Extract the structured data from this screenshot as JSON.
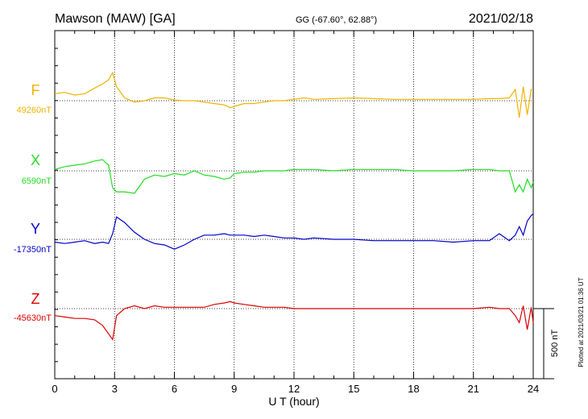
{
  "header": {
    "station": "Mawson (MAW)  [GA]",
    "coords": "GG (-67.60°,  62.88°)",
    "date": "2021/02/18"
  },
  "footer": {
    "xlabel": "U T (hour)",
    "plotted": "Plotted at 2021/03/21 01:36 UT",
    "scale": "500 nT"
  },
  "colors": {
    "F": "#f0b400",
    "X": "#22dd22",
    "Y": "#0000cc",
    "Z": "#dd0000"
  },
  "chart_data": {
    "type": "line",
    "xlim": [
      0,
      24
    ],
    "x_ticks": [
      "0",
      "3",
      "6",
      "9",
      "12",
      "15",
      "18",
      "21",
      "24"
    ],
    "x_grid_step": 3,
    "scale_bar_nT": 500,
    "x": [
      0,
      0.5,
      1,
      1.5,
      2,
      2.4,
      2.7,
      2.9,
      3.1,
      3.5,
      4,
      4.5,
      5,
      5.5,
      6,
      6.5,
      7,
      7.5,
      8,
      8.5,
      8.8,
      9,
      9.5,
      10,
      10.5,
      11,
      11.5,
      12,
      12.5,
      13,
      14,
      15,
      16,
      17,
      18,
      19,
      20,
      21,
      21.8,
      22.3,
      22.8,
      23.1,
      23.3,
      23.5,
      23.7,
      23.9,
      24
    ],
    "series": [
      {
        "name": "F",
        "label": "F",
        "baseline": "49260nT",
        "color": "#f0b400",
        "values": [
          50,
          60,
          40,
          50,
          90,
          120,
          150,
          200,
          100,
          20,
          -10,
          0,
          20,
          20,
          5,
          0,
          0,
          -10,
          -20,
          -30,
          -50,
          -40,
          -20,
          -20,
          -10,
          0,
          0,
          10,
          20,
          10,
          15,
          20,
          15,
          10,
          10,
          10,
          10,
          10,
          15,
          15,
          20,
          80,
          -120,
          100,
          -100,
          80,
          80
        ]
      },
      {
        "name": "X",
        "label": "X",
        "baseline": "6590nT",
        "color": "#22dd22",
        "values": [
          10,
          30,
          40,
          50,
          70,
          80,
          40,
          -120,
          -150,
          -150,
          -160,
          -60,
          -30,
          -40,
          -20,
          -30,
          0,
          -30,
          -40,
          -60,
          -50,
          -20,
          -10,
          -10,
          0,
          0,
          0,
          10,
          10,
          10,
          0,
          10,
          10,
          10,
          0,
          0,
          0,
          10,
          10,
          0,
          0,
          -150,
          -100,
          -150,
          -60,
          -120,
          -80
        ]
      },
      {
        "name": "Y",
        "label": "Y",
        "baseline": "-17350nT",
        "color": "#0000cc",
        "values": [
          -20,
          -30,
          -20,
          -10,
          -30,
          -20,
          -30,
          40,
          160,
          120,
          50,
          0,
          -30,
          -40,
          -70,
          -40,
          0,
          30,
          30,
          40,
          30,
          30,
          30,
          20,
          30,
          20,
          10,
          10,
          0,
          10,
          0,
          0,
          -10,
          -10,
          -10,
          -10,
          -20,
          -10,
          -10,
          40,
          -10,
          30,
          90,
          30,
          130,
          170,
          180
        ]
      },
      {
        "name": "Z",
        "label": "Z",
        "baseline": "-45630nT",
        "color": "#dd0000",
        "values": [
          -50,
          -60,
          -70,
          -70,
          -80,
          -120,
          -180,
          -220,
          -50,
          0,
          20,
          0,
          20,
          10,
          10,
          10,
          10,
          10,
          30,
          40,
          50,
          40,
          30,
          20,
          10,
          10,
          10,
          0,
          0,
          0,
          0,
          0,
          0,
          0,
          0,
          0,
          0,
          0,
          10,
          0,
          0,
          -50,
          -100,
          20,
          -150,
          10,
          -100
        ]
      }
    ]
  }
}
